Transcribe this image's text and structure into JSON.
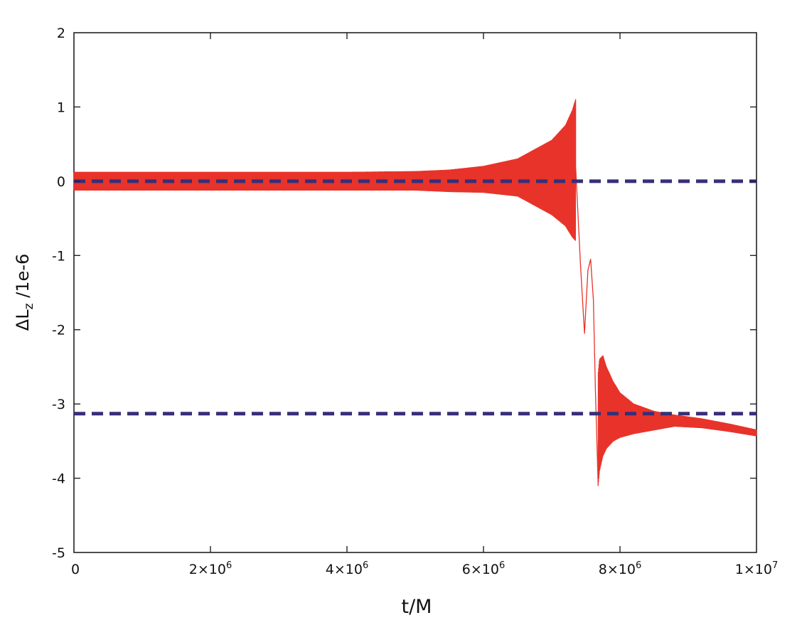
{
  "chart_data": {
    "type": "line",
    "title": "",
    "xlabel": "t/M",
    "ylabel": {
      "symbol": "ΔL",
      "subscript": "z",
      "suffix": " /1e-6"
    },
    "xlim": [
      0,
      10000000
    ],
    "ylim": [
      -5,
      2
    ],
    "x_ticks": [
      {
        "value": 0,
        "label": "0"
      },
      {
        "value": 2000000,
        "label": "2×10",
        "exp": "6"
      },
      {
        "value": 4000000,
        "label": "4×10",
        "exp": "6"
      },
      {
        "value": 6000000,
        "label": "6×10",
        "exp": "6"
      },
      {
        "value": 8000000,
        "label": "8×10",
        "exp": "6"
      },
      {
        "value": 10000000,
        "label": "1×10",
        "exp": "7"
      }
    ],
    "y_ticks": [
      {
        "value": 2,
        "label": "2"
      },
      {
        "value": 1,
        "label": "1"
      },
      {
        "value": 0,
        "label": "0"
      },
      {
        "value": -1,
        "label": "-1"
      },
      {
        "value": -2,
        "label": "-2"
      },
      {
        "value": -3,
        "label": "-3"
      },
      {
        "value": -4,
        "label": "-4"
      },
      {
        "value": -5,
        "label": "-5"
      }
    ],
    "grid": false,
    "legend": "none",
    "series": [
      {
        "kind": "oscillating-band",
        "color": "#e8332a",
        "envelope": {
          "t": [
            0,
            1000000,
            2000000,
            3000000,
            4000000,
            5000000,
            5500000,
            6000000,
            6500000,
            6800000,
            7000000,
            7200000,
            7300000,
            7350000
          ],
          "upper": [
            0.12,
            0.12,
            0.12,
            0.12,
            0.12,
            0.13,
            0.15,
            0.2,
            0.3,
            0.45,
            0.55,
            0.75,
            0.95,
            1.1
          ],
          "lower": [
            -0.12,
            -0.12,
            -0.12,
            -0.12,
            -0.12,
            -0.12,
            -0.14,
            -0.15,
            -0.2,
            -0.35,
            -0.45,
            -0.6,
            -0.75,
            -0.8
          ]
        },
        "transition": {
          "t": [
            7350000,
            7420000,
            7480000,
            7530000,
            7570000,
            7610000,
            7640000,
            7680000
          ],
          "y": [
            0.2,
            -1.1,
            -2.05,
            -1.2,
            -1.05,
            -1.6,
            -2.8,
            -4.1
          ]
        },
        "tail_envelope": {
          "t": [
            7680000,
            7700000,
            7750000,
            7800000,
            7900000,
            8000000,
            8200000,
            8500000,
            8800000,
            9200000,
            9600000,
            10000000
          ],
          "upper": [
            -2.6,
            -2.4,
            -2.35,
            -2.5,
            -2.7,
            -2.85,
            -3.0,
            -3.1,
            -3.15,
            -3.2,
            -3.27,
            -3.35
          ],
          "lower": [
            -4.1,
            -3.9,
            -3.7,
            -3.6,
            -3.5,
            -3.45,
            -3.4,
            -3.35,
            -3.3,
            -3.32,
            -3.37,
            -3.43
          ]
        }
      },
      {
        "kind": "dashed-reference",
        "color": "#362f78",
        "y": 0
      },
      {
        "kind": "dashed-reference",
        "color": "#362f78",
        "y": -3.13
      }
    ]
  }
}
